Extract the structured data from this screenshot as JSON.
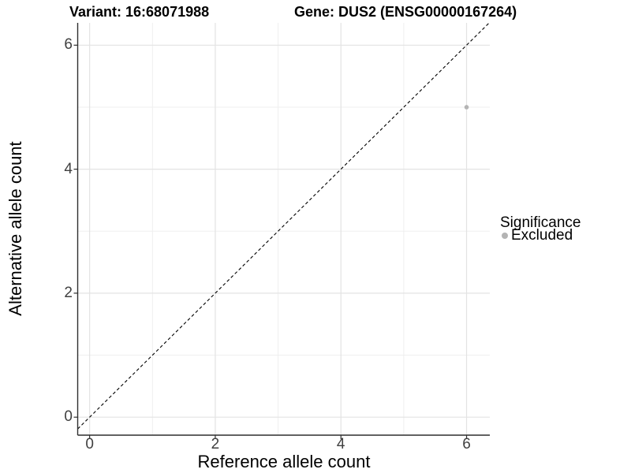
{
  "chart_data": {
    "type": "scatter",
    "title_left": "Variant: 16:68071988",
    "title_right": "Gene: DUS2 (ENSG00000167264)",
    "xlabel": "Reference allele count",
    "ylabel": "Alternative allele count",
    "xlim": [
      -0.19,
      6.37
    ],
    "ylim": [
      -0.29,
      6.36
    ],
    "x_major_ticks": [
      0,
      2,
      4,
      6
    ],
    "y_major_ticks": [
      0,
      2,
      4,
      6
    ],
    "x_minor_gridlines": [
      1,
      3,
      5
    ],
    "y_minor_gridlines": [
      1,
      3,
      5
    ],
    "grid": "major and minor, light gray, white background",
    "identity_line": {
      "equation": "y = x",
      "style": "dashed",
      "color": "#000000"
    },
    "series": [
      {
        "name": "Excluded",
        "color": "#b4b4b4",
        "points": [
          {
            "x": 6,
            "y": 5
          }
        ]
      }
    ],
    "legend": {
      "title": "Significance",
      "position": "right",
      "items": [
        {
          "label": "Excluded",
          "color": "#b4b4b4"
        }
      ]
    },
    "colors": {
      "axis_line": "#2f2f2f",
      "tick_mark": "#2f2f2f",
      "tick_label": "#404040",
      "grid_major": "#e3e3e3",
      "grid_minor": "#efefef",
      "point": "#b4b4b4",
      "background": "#ffffff"
    }
  }
}
